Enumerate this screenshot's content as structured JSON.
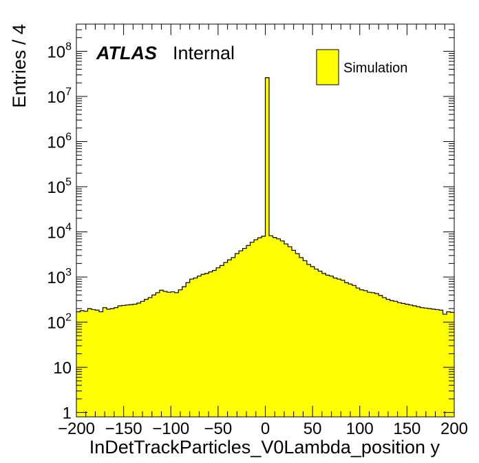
{
  "chart_data": {
    "type": "histogram",
    "yscale": "log",
    "xlabel": "InDetTrackParticles_V0Lambda_position y",
    "ylabel": "Entries / 4",
    "xlim": [
      -200,
      200
    ],
    "ylim": [
      0.8,
      400000000
    ],
    "bin_width": 4,
    "grid": false,
    "x_ticks": [
      -200,
      -150,
      -100,
      -50,
      0,
      50,
      100,
      150,
      200
    ],
    "x_tick_labels": [
      "−200",
      "−150",
      "−100",
      "−50",
      "0",
      "50",
      "100",
      "150",
      "200"
    ],
    "y_ticks": [
      1,
      10,
      100,
      1000,
      10000,
      100000,
      1000000,
      10000000,
      100000000
    ],
    "y_tick_labels": [
      {
        "base": "1",
        "exp": ""
      },
      {
        "base": "10",
        "exp": ""
      },
      {
        "base": "10",
        "exp": "2"
      },
      {
        "base": "10",
        "exp": "3"
      },
      {
        "base": "10",
        "exp": "4"
      },
      {
        "base": "10",
        "exp": "5"
      },
      {
        "base": "10",
        "exp": "6"
      },
      {
        "base": "10",
        "exp": "7"
      },
      {
        "base": "10",
        "exp": "8"
      }
    ],
    "series": [
      {
        "name": "Simulation",
        "color": "#ffff00",
        "edge_color": "#000000",
        "bin_edges_start": -200,
        "values": [
          170,
          180,
          175,
          200,
          190,
          185,
          170,
          210,
          195,
          200,
          210,
          230,
          235,
          240,
          245,
          250,
          265,
          290,
          320,
          350,
          400,
          450,
          510,
          480,
          460,
          470,
          450,
          520,
          610,
          750,
          900,
          950,
          1050,
          1150,
          1200,
          1300,
          1400,
          1600,
          1800,
          2100,
          2400,
          2700,
          3300,
          3800,
          4300,
          5000,
          5900,
          6700,
          7400,
          8000,
          26000000,
          8200,
          7500,
          7000,
          6300,
          5400,
          4700,
          3900,
          3300,
          2700,
          2300,
          1900,
          1700,
          1500,
          1350,
          1200,
          1100,
          1050,
          950,
          900,
          850,
          750,
          700,
          650,
          570,
          520,
          500,
          460,
          450,
          430,
          390,
          350,
          320,
          300,
          290,
          270,
          260,
          250,
          240,
          230,
          220,
          210,
          205,
          200,
          195,
          190,
          185,
          150,
          170,
          165
        ]
      }
    ],
    "legend": {
      "position": "top-right",
      "entries": [
        "Simulation"
      ]
    },
    "annotations": {
      "atlas": "ATLAS",
      "status": "Internal"
    }
  }
}
